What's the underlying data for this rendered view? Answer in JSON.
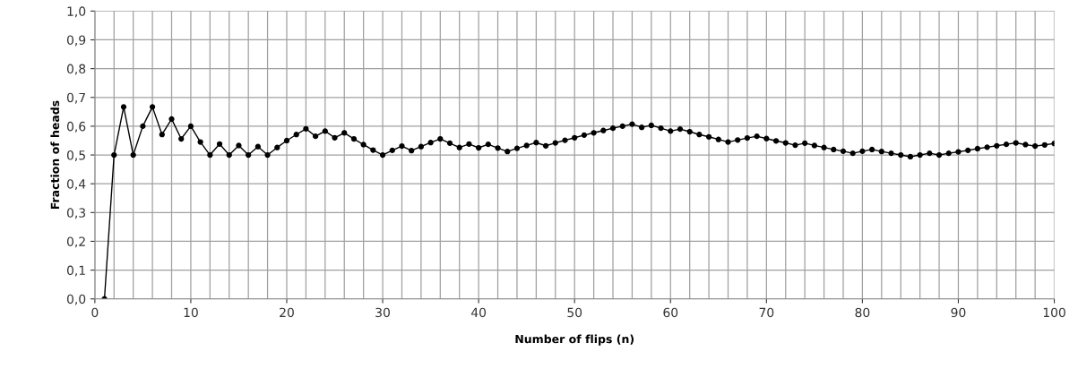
{
  "chart_data": {
    "type": "line",
    "xlabel": "Number of flips (n)",
    "ylabel": "Fraction of heads",
    "x": [
      1,
      2,
      3,
      4,
      5,
      6,
      7,
      8,
      9,
      10,
      11,
      12,
      13,
      14,
      15,
      16,
      17,
      18,
      19,
      20,
      21,
      22,
      23,
      24,
      25,
      26,
      27,
      28,
      29,
      30,
      31,
      32,
      33,
      34,
      35,
      36,
      37,
      38,
      39,
      40,
      41,
      42,
      43,
      44,
      45,
      46,
      47,
      48,
      49,
      50,
      51,
      52,
      53,
      54,
      55,
      56,
      57,
      58,
      59,
      60,
      61,
      62,
      63,
      64,
      65,
      66,
      67,
      68,
      69,
      70,
      71,
      72,
      73,
      74,
      75,
      76,
      77,
      78,
      79,
      80,
      81,
      82,
      83,
      84,
      85,
      86,
      87,
      88,
      89,
      90,
      91,
      92,
      93,
      94,
      95,
      96,
      97,
      98,
      99,
      100
    ],
    "series": [
      {
        "color": "#000000",
        "values": [
          0,
          0.5,
          0.667,
          0.5,
          0.6,
          0.667,
          0.571,
          0.625,
          0.556,
          0.6,
          0.545,
          0.5,
          0.538,
          0.5,
          0.533,
          0.5,
          0.529,
          0.5,
          0.526,
          0.55,
          0.571,
          0.591,
          0.565,
          0.583,
          0.56,
          0.577,
          0.556,
          0.536,
          0.517,
          0.5,
          0.516,
          0.531,
          0.515,
          0.529,
          0.543,
          0.556,
          0.541,
          0.526,
          0.538,
          0.525,
          0.537,
          0.524,
          0.512,
          0.523,
          0.533,
          0.543,
          0.532,
          0.542,
          0.551,
          0.56,
          0.569,
          0.577,
          0.585,
          0.593,
          0.6,
          0.607,
          0.596,
          0.603,
          0.593,
          0.583,
          0.59,
          0.581,
          0.571,
          0.563,
          0.554,
          0.545,
          0.552,
          0.559,
          0.565,
          0.557,
          0.549,
          0.542,
          0.534,
          0.541,
          0.533,
          0.526,
          0.519,
          0.513,
          0.506,
          0.513,
          0.519,
          0.512,
          0.506,
          0.5,
          0.494,
          0.5,
          0.506,
          0.5,
          0.506,
          0.511,
          0.516,
          0.522,
          0.527,
          0.532,
          0.537,
          0.542,
          0.536,
          0.531,
          0.535,
          0.54
        ]
      }
    ],
    "xlim": [
      0,
      100
    ],
    "ylim": [
      0,
      1
    ],
    "xticks": [
      0,
      {
        "value": 2,
        "label": null
      },
      {
        "value": 4,
        "label": null
      },
      {
        "value": 6,
        "label": null
      },
      {
        "value": 8,
        "label": null
      },
      10,
      {
        "value": 12,
        "label": null
      },
      {
        "value": 14,
        "label": null
      },
      {
        "value": 16,
        "label": null
      },
      {
        "value": 18,
        "label": null
      },
      20,
      {
        "value": 22,
        "label": null
      },
      {
        "value": 24,
        "label": null
      },
      {
        "value": 26,
        "label": null
      },
      {
        "value": 28,
        "label": null
      },
      30,
      {
        "value": 32,
        "label": null
      },
      {
        "value": 34,
        "label": null
      },
      {
        "value": 36,
        "label": null
      },
      {
        "value": 38,
        "label": null
      },
      40,
      {
        "value": 42,
        "label": null
      },
      {
        "value": 44,
        "label": null
      },
      {
        "value": 46,
        "label": null
      },
      {
        "value": 48,
        "label": null
      },
      50,
      {
        "value": 52,
        "label": null
      },
      {
        "value": 54,
        "label": null
      },
      {
        "value": 56,
        "label": null
      },
      {
        "value": 58,
        "label": null
      },
      60,
      {
        "value": 62,
        "label": null
      },
      {
        "value": 64,
        "label": null
      },
      {
        "value": 66,
        "label": null
      },
      {
        "value": 68,
        "label": null
      },
      70,
      {
        "value": 72,
        "label": null
      },
      {
        "value": 74,
        "label": null
      },
      {
        "value": 76,
        "label": null
      },
      {
        "value": 78,
        "label": null
      },
      80,
      {
        "value": 82,
        "label": null
      },
      {
        "value": 84,
        "label": null
      },
      {
        "value": 86,
        "label": null
      },
      {
        "value": 88,
        "label": null
      },
      90,
      {
        "value": 92,
        "label": null
      },
      {
        "value": 94,
        "label": null
      },
      {
        "value": 96,
        "label": null
      },
      {
        "value": 98,
        "label": null
      },
      100
    ],
    "yticks": [
      {
        "value": 0,
        "label": "0,0"
      },
      {
        "value": 0.1,
        "label": "0,1"
      },
      {
        "value": 0.2,
        "label": "0,2"
      },
      {
        "value": 0.3,
        "label": "0,3"
      },
      {
        "value": 0.4,
        "label": "0,4"
      },
      {
        "value": 0.5,
        "label": "0,5"
      },
      {
        "value": 0.6,
        "label": "0,6"
      },
      {
        "value": 0.7,
        "label": "0,7"
      },
      {
        "value": 0.8,
        "label": "0,8"
      },
      {
        "value": 0.9,
        "label": "0,9"
      },
      {
        "value": 1,
        "label": "1,0"
      }
    ],
    "grid": true,
    "marker": "circle",
    "line_style": "solid"
  }
}
